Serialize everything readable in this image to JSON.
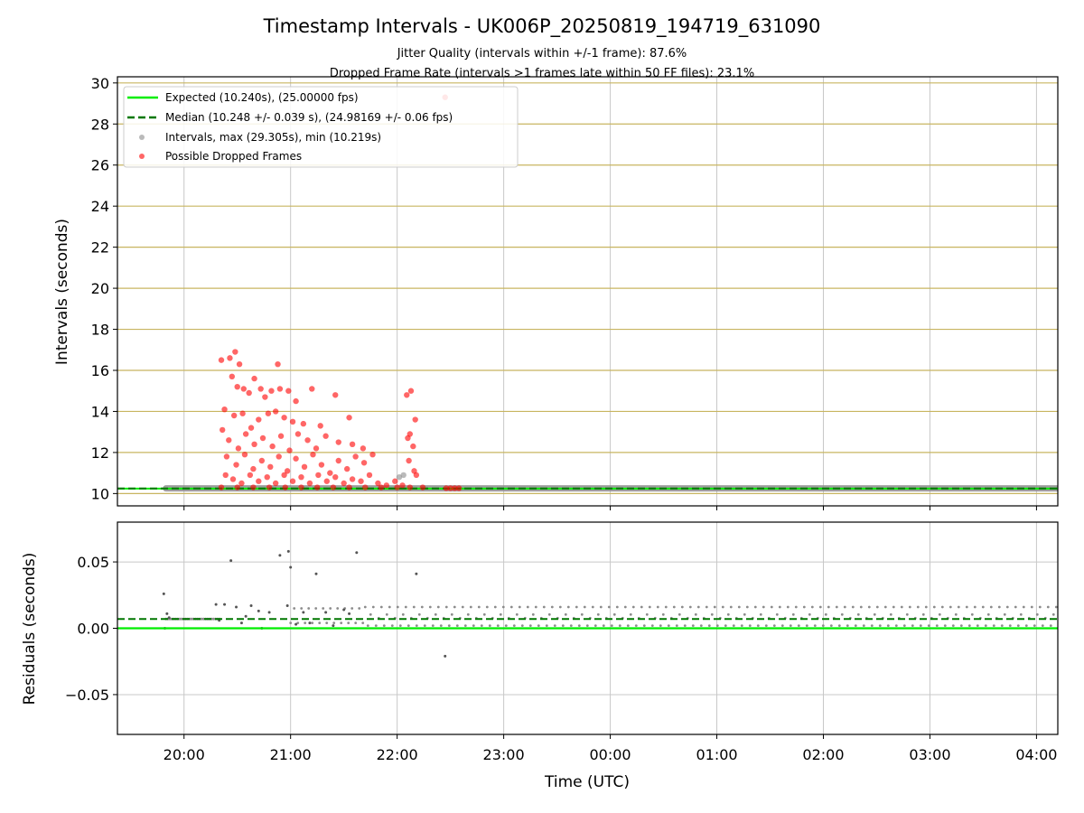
{
  "colors": {
    "expected": "#00ee00",
    "median": "#007700",
    "intervals": "#8c8c8c",
    "dropped": "#ff0000",
    "gridlines_hlines": "#c8b560",
    "grid": "#c8c8c8"
  },
  "figure": {
    "title": "Timestamp Intervals - UK006P_20250819_194719_631090",
    "subtitle_1": "Jitter Quality (intervals within +/-1 frame): 87.6%",
    "subtitle_2": "Dropped Frame Rate (intervals >1 frames late within 50 FF files): 23.1%"
  },
  "chart_data": [
    {
      "type": "scatter",
      "panel": "intervals",
      "ylabel": "Intervals (seconds)",
      "xlabel": "",
      "x_unit": "hours since 19:00 UTC on the plotted night",
      "xlim": [
        0.375,
        9.2
      ],
      "ylim": [
        9.4,
        30.3
      ],
      "y_ticks": [
        10,
        12,
        14,
        16,
        18,
        20,
        22,
        24,
        26,
        28,
        30
      ],
      "y_tick_labels": [
        "10",
        "12",
        "14",
        "16",
        "18",
        "20",
        "22",
        "24",
        "26",
        "28",
        "30"
      ],
      "grid": true,
      "legend_position": "top-left",
      "legend": [
        {
          "label": "Expected (10.240s), (25.00000 fps)",
          "marker": "solid-line",
          "color": "#00ee00"
        },
        {
          "label": "Median (10.248 +/- 0.039 s), (24.98169 +/- 0.06 fps)",
          "marker": "dashed-line",
          "color": "#007700"
        },
        {
          "label": "Intervals, max (29.305s), min (10.219s)",
          "marker": "dot",
          "color": "#8c8c8c"
        },
        {
          "label": "Possible Dropped Frames",
          "marker": "dot",
          "color": "#ff0000"
        }
      ],
      "expected_value": 10.24,
      "median_value": 10.248,
      "interval_band": {
        "x_start": 0.83,
        "x_end": 9.2,
        "y": 10.25
      },
      "series": [
        {
          "name": "Possible Dropped Frames",
          "points": [
            [
              3.45,
              29.3
            ],
            [
              1.35,
              16.5
            ],
            [
              1.43,
              16.6
            ],
            [
              1.48,
              16.9
            ],
            [
              1.52,
              16.3
            ],
            [
              1.66,
              15.6
            ],
            [
              1.88,
              16.3
            ],
            [
              1.45,
              15.7
            ],
            [
              1.5,
              15.2
            ],
            [
              1.56,
              15.1
            ],
            [
              1.61,
              14.9
            ],
            [
              1.72,
              15.1
            ],
            [
              1.76,
              14.7
            ],
            [
              1.82,
              15.0
            ],
            [
              1.9,
              15.1
            ],
            [
              1.98,
              15.0
            ],
            [
              2.05,
              14.5
            ],
            [
              2.2,
              15.1
            ],
            [
              2.42,
              14.8
            ],
            [
              1.38,
              14.1
            ],
            [
              1.47,
              13.8
            ],
            [
              1.55,
              13.9
            ],
            [
              1.63,
              13.2
            ],
            [
              1.7,
              13.6
            ],
            [
              1.79,
              13.9
            ],
            [
              1.86,
              14.0
            ],
            [
              1.94,
              13.7
            ],
            [
              2.02,
              13.5
            ],
            [
              2.12,
              13.4
            ],
            [
              2.28,
              13.3
            ],
            [
              2.55,
              13.7
            ],
            [
              1.36,
              13.1
            ],
            [
              1.42,
              12.6
            ],
            [
              1.51,
              12.2
            ],
            [
              1.58,
              12.9
            ],
            [
              1.66,
              12.4
            ],
            [
              1.74,
              12.7
            ],
            [
              1.83,
              12.3
            ],
            [
              1.91,
              12.8
            ],
            [
              1.99,
              12.1
            ],
            [
              2.07,
              12.9
            ],
            [
              2.16,
              12.6
            ],
            [
              2.24,
              12.2
            ],
            [
              2.33,
              12.8
            ],
            [
              2.45,
              12.5
            ],
            [
              2.58,
              12.4
            ],
            [
              2.68,
              12.2
            ],
            [
              1.4,
              11.8
            ],
            [
              1.49,
              11.4
            ],
            [
              1.57,
              11.9
            ],
            [
              1.65,
              11.2
            ],
            [
              1.73,
              11.6
            ],
            [
              1.81,
              11.3
            ],
            [
              1.89,
              11.8
            ],
            [
              1.97,
              11.1
            ],
            [
              2.05,
              11.7
            ],
            [
              2.13,
              11.3
            ],
            [
              2.21,
              11.9
            ],
            [
              2.29,
              11.4
            ],
            [
              2.37,
              11.0
            ],
            [
              2.45,
              11.6
            ],
            [
              2.53,
              11.2
            ],
            [
              2.61,
              11.8
            ],
            [
              2.69,
              11.5
            ],
            [
              2.77,
              11.9
            ],
            [
              1.39,
              10.9
            ],
            [
              1.46,
              10.7
            ],
            [
              1.54,
              10.5
            ],
            [
              1.62,
              10.9
            ],
            [
              1.7,
              10.6
            ],
            [
              1.78,
              10.8
            ],
            [
              1.86,
              10.5
            ],
            [
              1.94,
              10.9
            ],
            [
              2.02,
              10.6
            ],
            [
              2.1,
              10.8
            ],
            [
              2.18,
              10.5
            ],
            [
              2.26,
              10.9
            ],
            [
              2.34,
              10.6
            ],
            [
              2.42,
              10.8
            ],
            [
              2.5,
              10.5
            ],
            [
              2.58,
              10.7
            ],
            [
              2.66,
              10.6
            ],
            [
              2.74,
              10.9
            ],
            [
              2.82,
              10.5
            ],
            [
              2.9,
              10.4
            ],
            [
              2.98,
              10.6
            ],
            [
              3.05,
              10.4
            ],
            [
              3.09,
              14.8
            ],
            [
              3.13,
              15.0
            ],
            [
              3.12,
              12.9
            ],
            [
              3.15,
              12.3
            ],
            [
              3.17,
              13.6
            ],
            [
              3.11,
              11.6
            ],
            [
              3.16,
              11.1
            ],
            [
              3.18,
              10.9
            ],
            [
              3.1,
              12.7
            ],
            [
              1.35,
              10.3
            ],
            [
              1.5,
              10.3
            ],
            [
              1.65,
              10.3
            ],
            [
              1.8,
              10.3
            ],
            [
              1.95,
              10.3
            ],
            [
              2.1,
              10.3
            ],
            [
              2.25,
              10.3
            ],
            [
              2.4,
              10.3
            ],
            [
              2.55,
              10.3
            ],
            [
              2.7,
              10.3
            ],
            [
              2.85,
              10.3
            ],
            [
              3.0,
              10.3
            ],
            [
              3.12,
              10.3
            ],
            [
              3.24,
              10.3
            ],
            [
              3.46,
              10.26
            ],
            [
              3.5,
              10.26
            ],
            [
              3.54,
              10.26
            ],
            [
              3.58,
              10.26
            ]
          ]
        },
        {
          "name": "Intervals",
          "points": [
            [
              3.02,
              10.8
            ],
            [
              3.06,
              10.9
            ]
          ]
        }
      ]
    },
    {
      "type": "scatter",
      "panel": "residuals",
      "xlabel": "Time (UTC)",
      "ylabel": "Residuals (seconds)",
      "xlim": [
        0.375,
        9.2
      ],
      "ylim": [
        -0.08,
        0.08
      ],
      "y_ticks": [
        -0.05,
        0.0,
        0.05
      ],
      "y_tick_labels": [
        "−0.05",
        "0.00",
        "0.05"
      ],
      "x_ticks": [
        1,
        2,
        3,
        4,
        5,
        6,
        7,
        8,
        9
      ],
      "x_tick_labels": [
        "20:00",
        "21:00",
        "22:00",
        "23:00",
        "00:00",
        "01:00",
        "02:00",
        "03:00",
        "04:00"
      ],
      "grid": true,
      "expected_value": 0.0,
      "median_value": 0.007,
      "residual_band": {
        "x_start": 2.7,
        "x_end": 9.2,
        "low": 0.002,
        "high": 0.016
      },
      "series": [
        {
          "name": "Residuals",
          "points": [
            [
              0.81,
              0.026
            ],
            [
              0.82,
              0.0
            ],
            [
              0.84,
              0.011
            ],
            [
              0.86,
              0.008
            ],
            [
              1.3,
              0.018
            ],
            [
              1.33,
              0.006
            ],
            [
              1.38,
              0.018
            ],
            [
              1.44,
              0.051
            ],
            [
              1.49,
              0.016
            ],
            [
              1.54,
              0.004
            ],
            [
              1.63,
              0.017
            ],
            [
              1.7,
              0.013
            ],
            [
              1.73,
              0.0
            ],
            [
              1.8,
              0.012
            ],
            [
              1.9,
              0.055
            ],
            [
              1.98,
              0.058
            ],
            [
              2.0,
              0.046
            ],
            [
              1.97,
              0.017
            ],
            [
              2.12,
              0.012
            ],
            [
              2.24,
              0.041
            ],
            [
              2.33,
              0.012
            ],
            [
              2.5,
              0.014
            ],
            [
              2.62,
              0.057
            ],
            [
              3.18,
              0.041
            ],
            [
              3.45,
              -0.021
            ],
            [
              2.05,
              0.003
            ],
            [
              2.18,
              0.004
            ],
            [
              2.4,
              0.002
            ],
            [
              2.55,
              0.011
            ],
            [
              1.58,
              0.009
            ]
          ]
        }
      ]
    }
  ]
}
